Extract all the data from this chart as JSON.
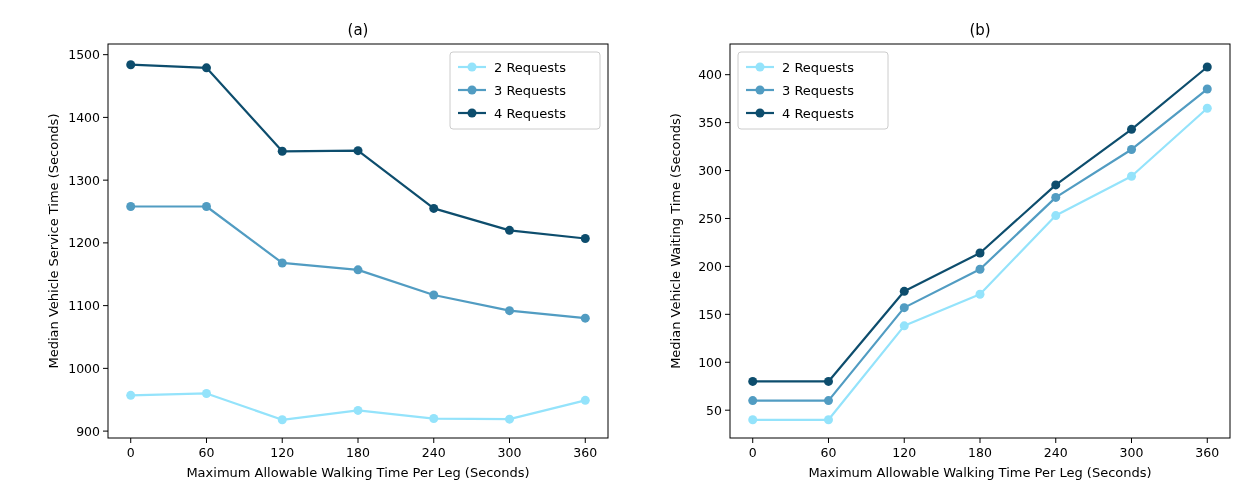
{
  "chart_data": [
    {
      "type": "line",
      "title": "(a)",
      "xlabel": "Maximum Allowable Walking Time Per Leg (Seconds)",
      "ylabel": "Median Vehicle Service Time (Seconds)",
      "x": [
        0,
        60,
        120,
        180,
        240,
        300,
        360
      ],
      "xlim": [
        -18,
        378
      ],
      "xticks": [
        0,
        60,
        120,
        180,
        240,
        300,
        360
      ],
      "ylim": [
        889,
        1517
      ],
      "yticks": [
        900,
        1000,
        1100,
        1200,
        1300,
        1400,
        1500
      ],
      "legend": "top right",
      "marker": "circle",
      "grid": false,
      "series": [
        {
          "name": "2 Requests",
          "color": "#94e3fb",
          "values": [
            957,
            960,
            918,
            933,
            920,
            919,
            949
          ]
        },
        {
          "name": "3 Requests",
          "color": "#519cc2",
          "values": [
            1258,
            1258,
            1168,
            1157,
            1117,
            1092,
            1080
          ]
        },
        {
          "name": "4 Requests",
          "color": "#0d4d6d",
          "values": [
            1484,
            1479,
            1346,
            1347,
            1255,
            1220,
            1207
          ]
        }
      ]
    },
    {
      "type": "line",
      "title": "(b)",
      "xlabel": "Maximum Allowable Walking Time Per Leg (Seconds)",
      "ylabel": "Median Vehicle Waiting Time (Seconds)",
      "x": [
        0,
        60,
        120,
        180,
        240,
        300,
        360
      ],
      "xlim": [
        -18,
        378
      ],
      "xticks": [
        0,
        60,
        120,
        180,
        240,
        300,
        360
      ],
      "ylim": [
        21,
        432
      ],
      "yticks": [
        50,
        100,
        150,
        200,
        250,
        300,
        350,
        400
      ],
      "legend": "top left",
      "marker": "circle",
      "grid": false,
      "series": [
        {
          "name": "2 Requests",
          "color": "#94e3fb",
          "values": [
            40,
            40,
            138,
            171,
            253,
            294,
            365
          ]
        },
        {
          "name": "3 Requests",
          "color": "#519cc2",
          "values": [
            60,
            60,
            157,
            197,
            272,
            322,
            385
          ]
        },
        {
          "name": "4 Requests",
          "color": "#0d4d6d",
          "values": [
            80,
            80,
            174,
            214,
            285,
            343,
            408
          ]
        }
      ]
    }
  ]
}
